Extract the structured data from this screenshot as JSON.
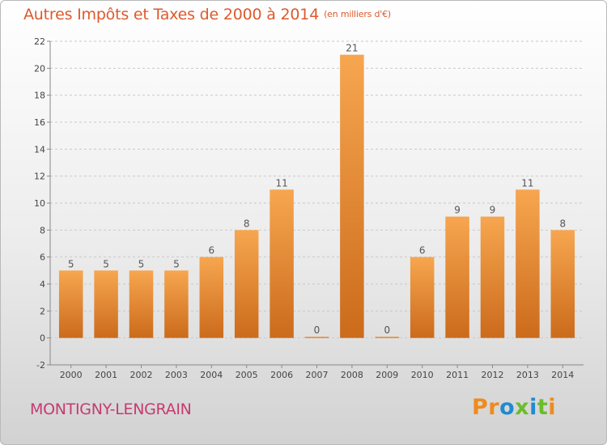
{
  "header": {
    "title": "Autres Impôts et Taxes de 2000 à 2014",
    "unit": "(en milliers d'€)"
  },
  "footer": {
    "commune": "MONTIGNY-LENGRAIN",
    "logo": "Proxiti"
  },
  "colors": {
    "bar_light": "#f7a650",
    "bar_dark": "#cb6b1b",
    "title": "#dd5a2c",
    "commune": "#c63a70"
  },
  "chart_data": {
    "type": "bar",
    "categories": [
      "2000",
      "2001",
      "2002",
      "2003",
      "2004",
      "2005",
      "2006",
      "2007",
      "2008",
      "2009",
      "2010",
      "2011",
      "2012",
      "2013",
      "2014"
    ],
    "values": [
      5,
      5,
      5,
      5,
      6,
      8,
      11,
      0,
      21,
      0,
      6,
      9,
      9,
      11,
      8
    ],
    "title": "Autres Impôts et Taxes de 2000 à 2014",
    "xlabel": "",
    "ylabel": "",
    "ylim": [
      -2,
      22
    ],
    "yticks": [
      -2,
      0,
      2,
      4,
      6,
      8,
      10,
      12,
      14,
      16,
      18,
      20,
      22
    ],
    "grid": "horizontal dashed",
    "data_labels": true
  }
}
